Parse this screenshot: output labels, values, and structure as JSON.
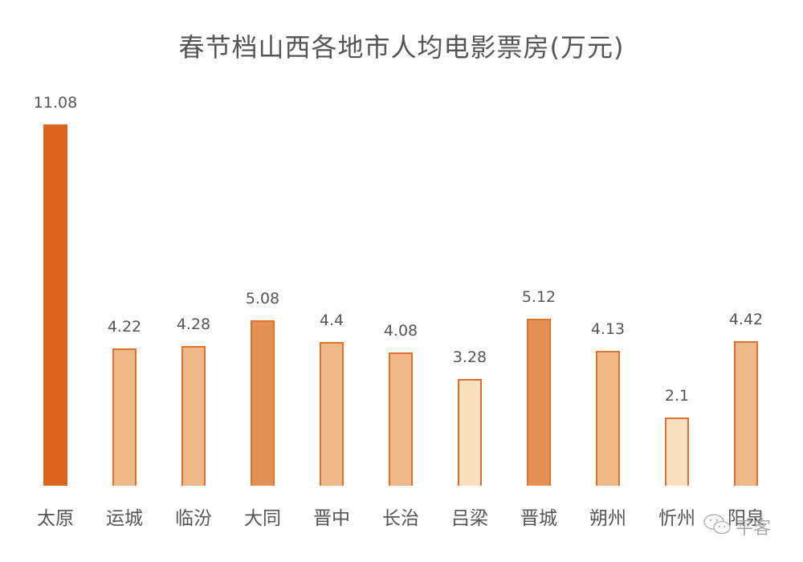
{
  "title": "春节档山西各地市人均电影票房(万元)",
  "chart_data": {
    "type": "bar",
    "title": "春节档山西各地市人均电影票房(万元)",
    "xlabel": "",
    "ylabel": "",
    "categories": [
      "太原",
      "运城",
      "临汾",
      "大同",
      "晋中",
      "长治",
      "吕梁",
      "晋城",
      "朔州",
      "忻州",
      "阳泉"
    ],
    "values": [
      11.08,
      4.22,
      4.28,
      5.08,
      4.4,
      4.08,
      3.28,
      5.12,
      4.13,
      2.1,
      4.42
    ],
    "value_labels": [
      "11.08",
      "4.22",
      "4.28",
      "5.08",
      "4.4",
      "4.08",
      "3.28",
      "5.12",
      "4.13",
      "2.1",
      "4.42"
    ],
    "bar_colors": [
      "#d9661c",
      "#efb889",
      "#efb889",
      "#e39155",
      "#efb889",
      "#efb889",
      "#f9e0c0",
      "#e39155",
      "#efb889",
      "#f9e0c0",
      "#efb889"
    ],
    "border_color": "#e0712a",
    "grid": false,
    "ylim": [
      0,
      11.08
    ],
    "data_labels": true
  },
  "watermark": "平客"
}
